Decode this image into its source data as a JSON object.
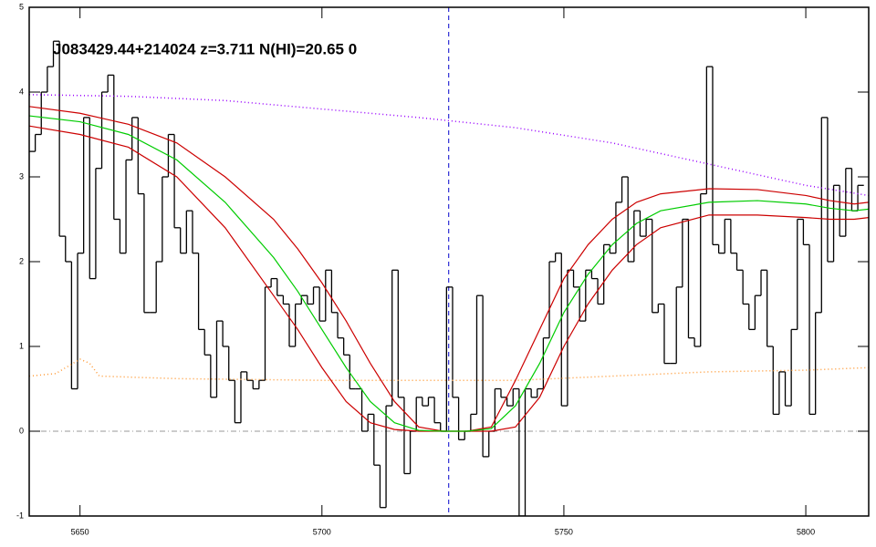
{
  "chart_data": {
    "type": "line",
    "title": "J083429.44+214024 z=3.711 N(HI)=20.65 0",
    "xlim": [
      5639.5,
      5813
    ],
    "ylim": [
      -1,
      5
    ],
    "xticks": [
      5650,
      5700,
      5750,
      5800
    ],
    "yticks": [
      -1,
      0,
      1,
      2,
      3,
      4,
      5
    ],
    "zero_line": 0,
    "vline": 5726.2,
    "vline_color": "#0000cc",
    "flux": {
      "color": "#000000",
      "step": 1.25,
      "x": [
        5639.5,
        5640.75,
        5642,
        5643.25,
        5644.5,
        5645.75,
        5647,
        5648.25,
        5649.5,
        5650.75,
        5652,
        5653.25,
        5654.5,
        5655.75,
        5657,
        5658.25,
        5659.5,
        5660.75,
        5662,
        5663.25,
        5664.5,
        5665.75,
        5667,
        5668.25,
        5669.5,
        5670.75,
        5672,
        5673.25,
        5674.5,
        5675.75,
        5677,
        5678.25,
        5679.5,
        5680.75,
        5682,
        5683.25,
        5684.5,
        5685.75,
        5687,
        5688.25,
        5689.5,
        5690.75,
        5692,
        5693.25,
        5694.5,
        5695.75,
        5697,
        5698.25,
        5699.5,
        5700.75,
        5702,
        5703.25,
        5704.5,
        5705.75,
        5707,
        5708.25,
        5709.5,
        5710.75,
        5712,
        5713.25,
        5714.5,
        5715.75,
        5717,
        5718.25,
        5719.5,
        5720.75,
        5722,
        5723.25,
        5724.5,
        5725.75,
        5727,
        5728.25,
        5729.5,
        5730.75,
        5732,
        5733.25,
        5734.5,
        5735.75,
        5737,
        5738.25,
        5739.5,
        5740.75,
        5742,
        5743.25,
        5744.5,
        5745.75,
        5747,
        5748.25,
        5749.5,
        5750.75,
        5752,
        5753.25,
        5754.5,
        5755.75,
        5757,
        5758.25,
        5759.5,
        5760.75,
        5762,
        5763.25,
        5764.5,
        5765.75,
        5767,
        5768.25,
        5769.5,
        5770.75,
        5772,
        5773.25,
        5774.5,
        5775.75,
        5777,
        5778.25,
        5779.5,
        5780.75,
        5782,
        5783.25,
        5784.5,
        5785.75,
        5787,
        5788.25,
        5789.5,
        5790.75,
        5792,
        5793.25,
        5794.5,
        5795.75,
        5797,
        5798.25,
        5799.5,
        5800.75,
        5802,
        5803.25,
        5804.5,
        5805.75,
        5807,
        5808.25,
        5809.5,
        5810.75
      ],
      "values": [
        3.3,
        3.5,
        4.0,
        4.3,
        4.6,
        2.3,
        2.0,
        0.5,
        2.1,
        3.7,
        1.8,
        3.1,
        4.0,
        4.2,
        2.5,
        2.1,
        3.2,
        3.7,
        2.8,
        1.4,
        1.4,
        2.0,
        3.0,
        3.5,
        2.4,
        2.1,
        2.6,
        2.1,
        1.2,
        0.9,
        0.4,
        1.3,
        1.0,
        0.6,
        0.1,
        0.7,
        0.6,
        0.5,
        0.6,
        1.7,
        1.8,
        1.6,
        1.5,
        1.0,
        1.5,
        1.6,
        1.5,
        1.7,
        1.3,
        1.9,
        1.4,
        1.1,
        0.9,
        0.5,
        0.5,
        0.0,
        0.2,
        -0.4,
        -0.9,
        0.3,
        1.9,
        0.4,
        -0.5,
        0.0,
        0.4,
        0.3,
        0.4,
        0.1,
        0.0,
        1.7,
        0.4,
        -0.1,
        0.0,
        0.2,
        1.6,
        -0.3,
        0.0,
        0.5,
        0.4,
        0.3,
        0.5,
        -1.0,
        0.5,
        0.4,
        0.5,
        1.1,
        2.0,
        2.1,
        0.3,
        1.9,
        1.7,
        1.3,
        1.9,
        1.8,
        1.5,
        2.2,
        2.1,
        2.7,
        3.0,
        2.0,
        2.6,
        2.3,
        2.5,
        1.4,
        1.5,
        0.8,
        0.8,
        1.7,
        2.5,
        1.1,
        1.0,
        2.8,
        4.3,
        2.2,
        2.1,
        2.5,
        2.1,
        1.9,
        1.5,
        1.2,
        1.6,
        1.9,
        1.0,
        0.2,
        0.7,
        0.3,
        1.2,
        2.5,
        2.2,
        0.2,
        1.4,
        3.7,
        2.0,
        2.9,
        2.3,
        3.1,
        2.6,
        2.9
      ]
    },
    "series": [
      {
        "color": "#9900ff",
        "dash": "1 3",
        "x": [
          5639.5,
          5660,
          5680,
          5700,
          5720,
          5740,
          5760,
          5780,
          5800,
          5813
        ],
        "values": [
          3.97,
          3.95,
          3.9,
          3.8,
          3.7,
          3.58,
          3.4,
          3.15,
          2.9,
          2.78
        ]
      },
      {
        "color": "#ff9933",
        "dash": "1 3",
        "x": [
          5639.5,
          5645,
          5650,
          5652,
          5654,
          5670,
          5700,
          5720,
          5740,
          5760,
          5780,
          5800,
          5813
        ],
        "values": [
          0.65,
          0.68,
          0.85,
          0.8,
          0.65,
          0.62,
          0.6,
          0.6,
          0.6,
          0.65,
          0.7,
          0.72,
          0.75
        ]
      },
      {
        "color": "#cc0000",
        "x": [
          5639.5,
          5650,
          5660,
          5670,
          5680,
          5690,
          5695,
          5700,
          5705,
          5710,
          5715,
          5720,
          5725,
          5730,
          5735,
          5740,
          5745,
          5750,
          5755,
          5760,
          5765,
          5770,
          5780,
          5790,
          5800,
          5805,
          5810,
          5813
        ],
        "values": [
          3.83,
          3.75,
          3.62,
          3.4,
          3.0,
          2.5,
          2.15,
          1.75,
          1.3,
          0.8,
          0.35,
          0.05,
          0,
          0,
          0.05,
          0.6,
          1.2,
          1.8,
          2.2,
          2.5,
          2.7,
          2.8,
          2.86,
          2.85,
          2.78,
          2.72,
          2.68,
          2.7
        ]
      },
      {
        "color": "#cc0000",
        "x": [
          5639.5,
          5650,
          5660,
          5670,
          5680,
          5690,
          5695,
          5700,
          5705,
          5710,
          5715,
          5720,
          5725,
          5730,
          5735,
          5740,
          5745,
          5750,
          5755,
          5760,
          5765,
          5770,
          5780,
          5790,
          5800,
          5805,
          5810,
          5813
        ],
        "values": [
          3.6,
          3.5,
          3.35,
          3.0,
          2.4,
          1.6,
          1.2,
          0.75,
          0.35,
          0.1,
          0.02,
          0,
          0,
          0,
          0,
          0.05,
          0.4,
          1.0,
          1.5,
          1.9,
          2.2,
          2.4,
          2.55,
          2.55,
          2.52,
          2.5,
          2.5,
          2.52
        ]
      },
      {
        "color": "#00cc00",
        "x": [
          5639.5,
          5650,
          5660,
          5670,
          5680,
          5690,
          5695,
          5700,
          5705,
          5710,
          5715,
          5720,
          5725,
          5730,
          5735,
          5740,
          5745,
          5750,
          5755,
          5760,
          5765,
          5770,
          5780,
          5790,
          5800,
          5805,
          5810,
          5813
        ],
        "values": [
          3.72,
          3.65,
          3.5,
          3.2,
          2.7,
          2.05,
          1.65,
          1.2,
          0.75,
          0.35,
          0.1,
          0.01,
          0,
          0,
          0.03,
          0.3,
          0.8,
          1.4,
          1.85,
          2.2,
          2.45,
          2.6,
          2.7,
          2.72,
          2.68,
          2.63,
          2.6,
          2.62
        ]
      }
    ]
  }
}
